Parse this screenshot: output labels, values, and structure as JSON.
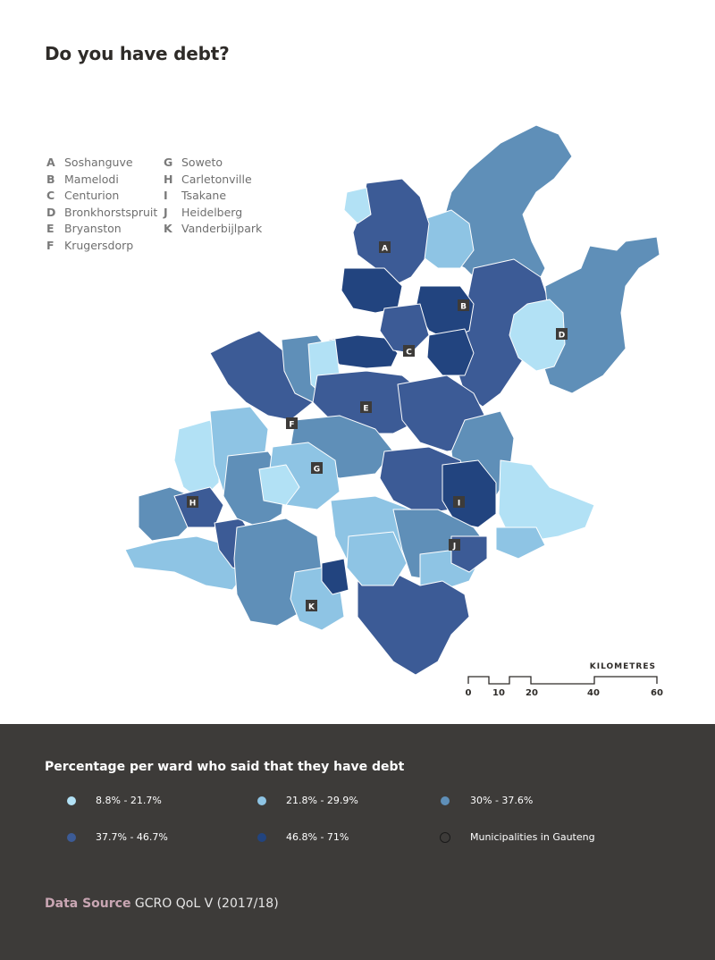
{
  "title": "Do you have debt?",
  "places": [
    {
      "code": "A",
      "name": "Soshanguve"
    },
    {
      "code": "B",
      "name": "Mamelodi"
    },
    {
      "code": "C",
      "name": "Centurion"
    },
    {
      "code": "D",
      "name": "Bronkhorstspruit"
    },
    {
      "code": "E",
      "name": "Bryanston"
    },
    {
      "code": "F",
      "name": "Krugersdorp"
    },
    {
      "code": "G",
      "name": "Soweto"
    },
    {
      "code": "H",
      "name": "Carletonville"
    },
    {
      "code": "I",
      "name": "Tsakane"
    },
    {
      "code": "J",
      "name": "Heidelberg"
    },
    {
      "code": "K",
      "name": "Vanderbijlpark"
    }
  ],
  "scale": {
    "title": "KILOMETRES",
    "ticks": [
      "0",
      "10",
      "20",
      "40",
      "60"
    ]
  },
  "legend": {
    "title": "Percentage per ward who said that they have debt",
    "items": [
      {
        "label": "8.8% - 21.7%",
        "color": "#b2e1f5"
      },
      {
        "label": "21.8% - 29.9%",
        "color": "#8ec4e4"
      },
      {
        "label": "30% - 37.6%",
        "color": "#5f8fb8"
      },
      {
        "label": "37.7% - 46.7%",
        "color": "#3c5b96"
      },
      {
        "label": "46.8% - 71%",
        "color": "#22447f"
      },
      {
        "label": "Municipalities in Gauteng",
        "color": "none"
      }
    ]
  },
  "source": {
    "label": "Data Source",
    "text": "GCRO QoL V (2017/18)"
  }
}
